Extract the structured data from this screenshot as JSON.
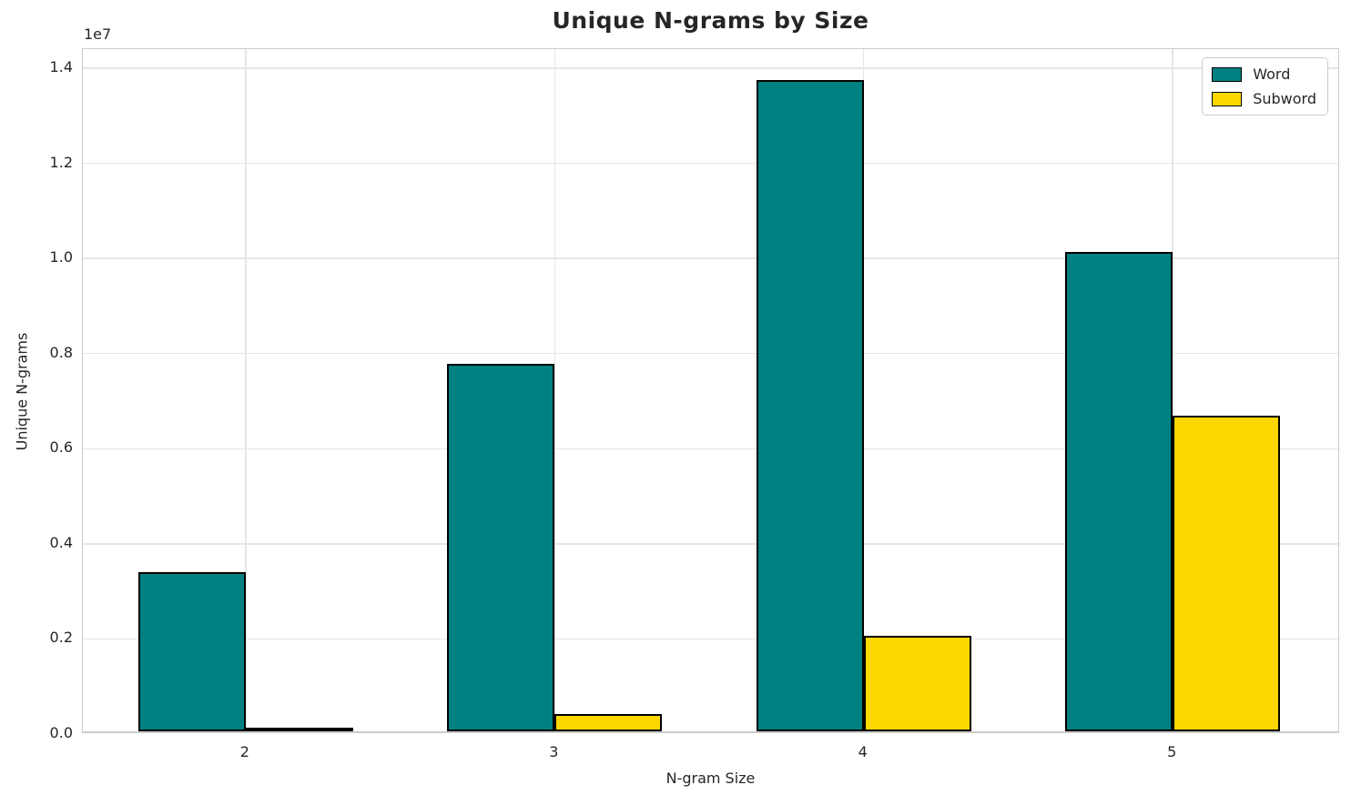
{
  "chart_data": {
    "type": "bar",
    "title": "Unique N-grams by Size",
    "xlabel": "N-gram Size",
    "ylabel": "Unique N-grams",
    "offset_text": "1e7",
    "categories": [
      "2",
      "3",
      "4",
      "5"
    ],
    "series": [
      {
        "name": "Word",
        "color": "#008080",
        "values": [
          3350000,
          7730000,
          13700000,
          10070000
        ]
      },
      {
        "name": "Subword",
        "color": "#FFD700",
        "values": [
          50000,
          360000,
          2010000,
          6630000
        ]
      }
    ],
    "bar_edge_color": "#000000",
    "bar_width_units": 0.35,
    "ylim": [
      0,
      14400000
    ],
    "y_ticks": [
      0,
      2000000,
      4000000,
      6000000,
      8000000,
      10000000,
      12000000,
      14000000
    ],
    "y_tick_labels": [
      "0.0",
      "0.2",
      "0.4",
      "0.6",
      "0.8",
      "1.0",
      "1.2",
      "1.4"
    ],
    "grid": true,
    "legend": {
      "position": "upper right",
      "entries": [
        "Word",
        "Subword"
      ]
    },
    "colors": {
      "word": "#008080",
      "subword": "#FFD700",
      "grid": "#e6e6e6",
      "spine": "#cccccc",
      "text": "#262626",
      "background": "#ffffff"
    }
  }
}
